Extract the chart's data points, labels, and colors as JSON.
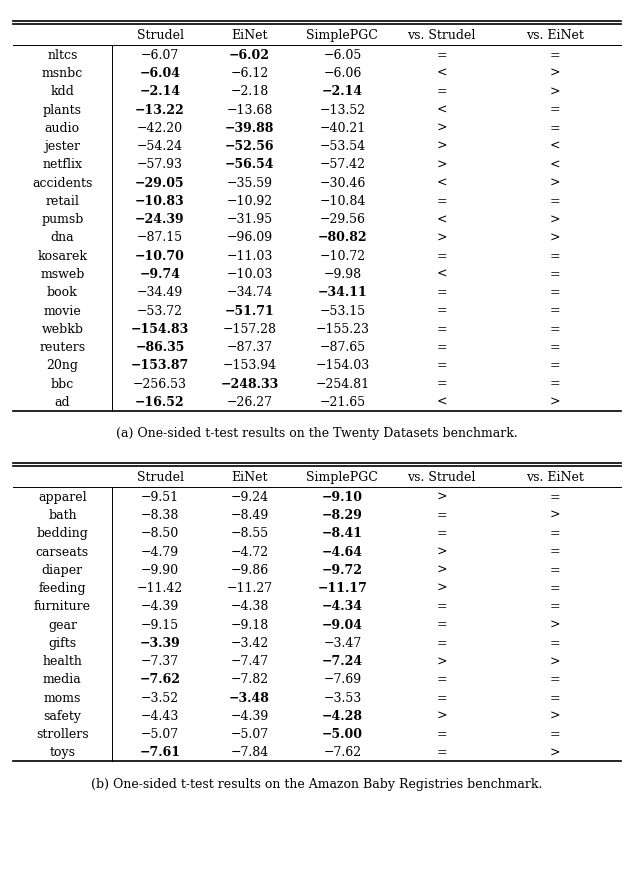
{
  "table1": {
    "header": [
      "",
      "Strudel",
      "EiNet",
      "SimplePGC",
      "vs. Strudel",
      "vs. EiNet"
    ],
    "rows": [
      [
        "nltcs",
        "−6.07",
        "−6.02",
        "−6.05",
        "=",
        "="
      ],
      [
        "msnbc",
        "−6.04",
        "−6.12",
        "−6.06",
        "<",
        ">"
      ],
      [
        "kdd",
        "−2.14",
        "−2.18",
        "−2.14",
        "=",
        ">"
      ],
      [
        "plants",
        "−13.22",
        "−13.68",
        "−13.52",
        "<",
        "="
      ],
      [
        "audio",
        "−42.20",
        "−39.88",
        "−40.21",
        ">",
        "="
      ],
      [
        "jester",
        "−54.24",
        "−52.56",
        "−53.54",
        ">",
        "<"
      ],
      [
        "netflix",
        "−57.93",
        "−56.54",
        "−57.42",
        ">",
        "<"
      ],
      [
        "accidents",
        "−29.05",
        "−35.59",
        "−30.46",
        "<",
        ">"
      ],
      [
        "retail",
        "−10.83",
        "−10.92",
        "−10.84",
        "=",
        "="
      ],
      [
        "pumsb",
        "−24.39",
        "−31.95",
        "−29.56",
        "<",
        ">"
      ],
      [
        "dna",
        "−87.15",
        "−96.09",
        "−80.82",
        ">",
        ">"
      ],
      [
        "kosarek",
        "−10.70",
        "−11.03",
        "−10.72",
        "=",
        "="
      ],
      [
        "msweb",
        "−9.74",
        "−10.03",
        "−9.98",
        "<",
        "="
      ],
      [
        "book",
        "−34.49",
        "−34.74",
        "−34.11",
        "=",
        "="
      ],
      [
        "movie",
        "−53.72",
        "−51.71",
        "−53.15",
        "=",
        "="
      ],
      [
        "webkb",
        "−154.83",
        "−157.28",
        "−155.23",
        "=",
        "="
      ],
      [
        "reuters",
        "−86.35",
        "−87.37",
        "−87.65",
        "=",
        "="
      ],
      [
        "20ng",
        "−153.87",
        "−153.94",
        "−154.03",
        "=",
        "="
      ],
      [
        "bbc",
        "−256.53",
        "−248.33",
        "−254.81",
        "=",
        "="
      ],
      [
        "ad",
        "−16.52",
        "−26.27",
        "−21.65",
        "<",
        ">"
      ]
    ],
    "bold": [
      [
        false,
        false,
        true,
        false,
        false,
        false
      ],
      [
        false,
        true,
        false,
        false,
        false,
        false
      ],
      [
        false,
        true,
        false,
        true,
        false,
        false
      ],
      [
        false,
        true,
        false,
        false,
        false,
        false
      ],
      [
        false,
        false,
        true,
        false,
        false,
        false
      ],
      [
        false,
        false,
        true,
        false,
        false,
        false
      ],
      [
        false,
        false,
        true,
        false,
        false,
        false
      ],
      [
        false,
        true,
        false,
        false,
        false,
        false
      ],
      [
        false,
        true,
        false,
        false,
        false,
        false
      ],
      [
        false,
        true,
        false,
        false,
        false,
        false
      ],
      [
        false,
        false,
        false,
        true,
        false,
        false
      ],
      [
        false,
        true,
        false,
        false,
        false,
        false
      ],
      [
        false,
        true,
        false,
        false,
        false,
        false
      ],
      [
        false,
        false,
        false,
        true,
        false,
        false
      ],
      [
        false,
        false,
        true,
        false,
        false,
        false
      ],
      [
        false,
        true,
        false,
        false,
        false,
        false
      ],
      [
        false,
        true,
        false,
        false,
        false,
        false
      ],
      [
        false,
        true,
        false,
        false,
        false,
        false
      ],
      [
        false,
        false,
        true,
        false,
        false,
        false
      ],
      [
        false,
        true,
        false,
        false,
        false,
        false
      ]
    ],
    "caption": "(a) One-sided t-test results on the Twenty Datasets benchmark."
  },
  "table2": {
    "header": [
      "",
      "Strudel",
      "EiNet",
      "SimplePGC",
      "vs. Strudel",
      "vs. EiNet"
    ],
    "rows": [
      [
        "apparel",
        "−9.51",
        "−9.24",
        "−9.10",
        ">",
        "="
      ],
      [
        "bath",
        "−8.38",
        "−8.49",
        "−8.29",
        "=",
        ">"
      ],
      [
        "bedding",
        "−8.50",
        "−8.55",
        "−8.41",
        "=",
        "="
      ],
      [
        "carseats",
        "−4.79",
        "−4.72",
        "−4.64",
        ">",
        "="
      ],
      [
        "diaper",
        "−9.90",
        "−9.86",
        "−9.72",
        ">",
        "="
      ],
      [
        "feeding",
        "−11.42",
        "−11.27",
        "−11.17",
        ">",
        "="
      ],
      [
        "furniture",
        "−4.39",
        "−4.38",
        "−4.34",
        "=",
        "="
      ],
      [
        "gear",
        "−9.15",
        "−9.18",
        "−9.04",
        "=",
        ">"
      ],
      [
        "gifts",
        "−3.39",
        "−3.42",
        "−3.47",
        "=",
        "="
      ],
      [
        "health",
        "−7.37",
        "−7.47",
        "−7.24",
        ">",
        ">"
      ],
      [
        "media",
        "−7.62",
        "−7.82",
        "−7.69",
        "=",
        "="
      ],
      [
        "moms",
        "−3.52",
        "−3.48",
        "−3.53",
        "=",
        "="
      ],
      [
        "safety",
        "−4.43",
        "−4.39",
        "−4.28",
        ">",
        ">"
      ],
      [
        "strollers",
        "−5.07",
        "−5.07",
        "−5.00",
        "=",
        "="
      ],
      [
        "toys",
        "−7.61",
        "−7.84",
        "−7.62",
        "=",
        ">"
      ]
    ],
    "bold": [
      [
        false,
        false,
        false,
        true,
        false,
        false
      ],
      [
        false,
        false,
        false,
        true,
        false,
        false
      ],
      [
        false,
        false,
        false,
        true,
        false,
        false
      ],
      [
        false,
        false,
        false,
        true,
        false,
        false
      ],
      [
        false,
        false,
        false,
        true,
        false,
        false
      ],
      [
        false,
        false,
        false,
        true,
        false,
        false
      ],
      [
        false,
        false,
        false,
        true,
        false,
        false
      ],
      [
        false,
        false,
        false,
        true,
        false,
        false
      ],
      [
        false,
        true,
        false,
        false,
        false,
        false
      ],
      [
        false,
        false,
        false,
        true,
        false,
        false
      ],
      [
        false,
        true,
        false,
        false,
        false,
        false
      ],
      [
        false,
        false,
        true,
        false,
        false,
        false
      ],
      [
        false,
        false,
        false,
        true,
        false,
        false
      ],
      [
        false,
        false,
        false,
        true,
        false,
        false
      ],
      [
        false,
        true,
        false,
        false,
        false,
        false
      ]
    ],
    "caption": "(b) One-sided t-test results on the Amazon Baby Registries benchmark."
  }
}
